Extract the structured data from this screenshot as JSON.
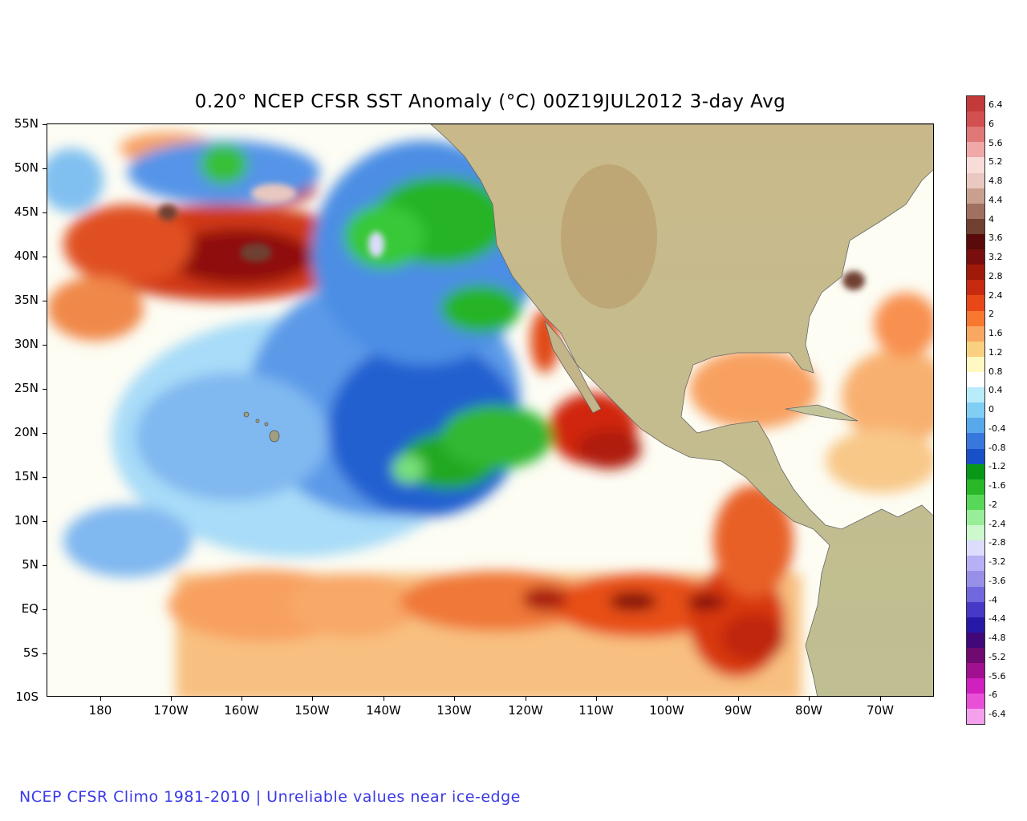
{
  "title": "0.20° NCEP CFSR SST Anomaly (°C) 00Z19JUL2012 3-day Avg",
  "footer": "NCEP CFSR Climo 1981-2010 | Unreliable values near ice-edge",
  "latitude_labels": [
    "55N",
    "50N",
    "45N",
    "40N",
    "35N",
    "30N",
    "25N",
    "20N",
    "15N",
    "10N",
    "5N",
    "EQ",
    "5S",
    "10S"
  ],
  "longitude_labels": [
    "180",
    "170W",
    "160W",
    "150W",
    "140W",
    "130W",
    "120W",
    "110W",
    "100W",
    "90W",
    "80W",
    "70W"
  ],
  "colorbar": {
    "labels": [
      "6.4",
      "6",
      "5.6",
      "5.2",
      "4.8",
      "4.4",
      "4",
      "3.6",
      "3.2",
      "2.8",
      "2.4",
      "2",
      "1.6",
      "1.2",
      "0.8",
      "0.4",
      "0",
      "-0.4",
      "-0.8",
      "-1.2",
      "-1.6",
      "-2",
      "-2.4",
      "-2.8",
      "-3.2",
      "-3.6",
      "-4",
      "-4.4",
      "-4.8",
      "-5.2",
      "-5.6",
      "-6",
      "-6.4"
    ],
    "colors": [
      "#c43a3a",
      "#d25050",
      "#e07878",
      "#f0a8a8",
      "#f8dcd8",
      "#e8c8c0",
      "#c9a090",
      "#a07060",
      "#704030",
      "#5a0a0a",
      "#7a0e0e",
      "#a01a0a",
      "#c82a10",
      "#e84818",
      "#f87830",
      "#f8a860",
      "#f8d080",
      "#fff8c0",
      "#ffffff",
      "#b8ecfa",
      "#80cef4",
      "#58a8ec",
      "#3878dc",
      "#1850c8",
      "#089818",
      "#28b828",
      "#58d858",
      "#98ee98",
      "#ccf8cc",
      "#dcdcfc",
      "#b8b0f4",
      "#9890e8",
      "#7068dc",
      "#4838c8",
      "#2818a8",
      "#400878",
      "#700a70",
      "#a01090",
      "#d020c0",
      "#e850d8",
      "#f4a0ec"
    ]
  }
}
